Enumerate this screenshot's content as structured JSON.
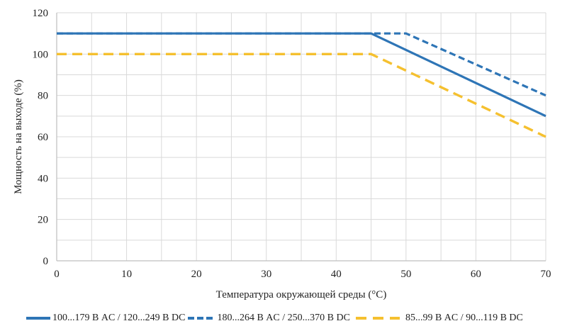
{
  "chart_data": {
    "type": "line",
    "title": "",
    "xlabel": "Температура окружающей среды (°C)",
    "ylabel": "Мощность на выходе (%)",
    "xlim": [
      0,
      70
    ],
    "ylim": [
      0,
      120
    ],
    "x_ticks": [
      "0",
      "10",
      "20",
      "30",
      "40",
      "50",
      "60",
      "70"
    ],
    "y_ticks": [
      "0",
      "20",
      "40",
      "60",
      "80",
      "100",
      "120"
    ],
    "grid": true,
    "legend_position": "bottom",
    "series": [
      {
        "name": "100...179 В AC / 120...249 В DC",
        "color": "#2e75b6",
        "style": "solid",
        "x": [
          0,
          45,
          70
        ],
        "y": [
          110,
          110,
          70
        ]
      },
      {
        "name": "180...264 В AC / 250...370 В DC",
        "color": "#2e75b6",
        "style": "dashed",
        "x": [
          0,
          50,
          70
        ],
        "y": [
          110,
          110,
          80
        ]
      },
      {
        "name": "85...99 В AC / 90...119 В DC",
        "color": "#f5c02f",
        "style": "dashed",
        "x": [
          0,
          45,
          70
        ],
        "y": [
          100,
          100,
          60
        ]
      }
    ]
  },
  "colors": {
    "grid": "#d9d9d9",
    "axis": "#bfbfbf"
  }
}
